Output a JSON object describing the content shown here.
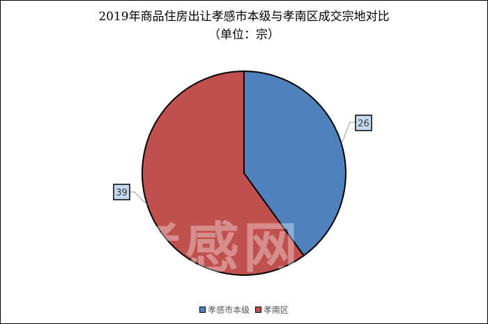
{
  "chart_data": {
    "type": "pie",
    "title": "2019年商品住房出让孝感市本级与孝南区成交宗地对比",
    "subtitle": "（单位：宗）",
    "categories": [
      "孝感市本级",
      "孝南区"
    ],
    "values": [
      26,
      39
    ],
    "colors": [
      "#4F81BD",
      "#C0504D"
    ],
    "legend_placement": "bottom",
    "data_labels": [
      "26",
      "39"
    ]
  },
  "watermark": "孝感网"
}
